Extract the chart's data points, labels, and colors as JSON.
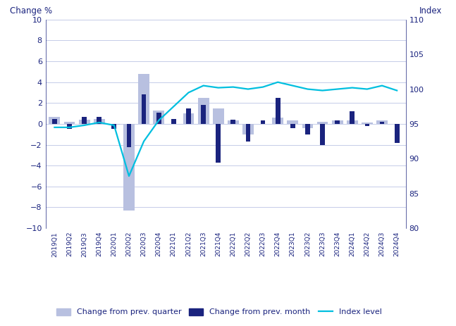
{
  "labels": [
    "2019Q1",
    "2019Q2",
    "2019Q3",
    "2019Q4",
    "2020Q1",
    "2020Q2",
    "2020Q3",
    "2020Q4",
    "2021Q1",
    "2021Q2",
    "2021Q3",
    "2021Q4",
    "2022Q1",
    "2022Q2",
    "2022Q3",
    "2022Q4",
    "2023Q1",
    "2023Q2",
    "2023Q3",
    "2023Q4",
    "2024Q1",
    "2024Q2",
    "2024Q3",
    "2024Q4"
  ],
  "quarter_change": [
    0.7,
    0.2,
    0.4,
    0.5,
    -0.1,
    -8.3,
    4.8,
    1.3,
    0.0,
    1.0,
    2.5,
    1.5,
    0.3,
    -1.0,
    0.0,
    0.6,
    0.3,
    -0.4,
    0.2,
    0.3,
    0.3,
    0.1,
    0.3,
    0.0
  ],
  "month_change": [
    0.5,
    -0.5,
    0.7,
    0.7,
    -0.5,
    -2.2,
    2.8,
    1.1,
    0.5,
    1.5,
    1.8,
    -3.7,
    0.4,
    -1.7,
    0.3,
    2.5,
    -0.4,
    -1.0,
    -2.0,
    0.3,
    1.2,
    -0.2,
    0.2,
    -1.8
  ],
  "index_level": [
    94.5,
    94.5,
    94.8,
    95.2,
    94.8,
    87.5,
    92.5,
    95.5,
    97.5,
    99.5,
    100.5,
    100.2,
    100.3,
    100.0,
    100.3,
    101.0,
    100.5,
    100.0,
    99.8,
    100.0,
    100.2,
    100.0,
    100.5,
    99.8
  ],
  "bar_month_color": "#1a237e",
  "bar_quarter_color": "#b8c0e0",
  "line_color": "#00bfdf",
  "axis_color": "#1a237e",
  "grid_color": "#c5cce8",
  "left_ylabel": "Change %",
  "right_ylabel": "Index",
  "ylim_left": [
    -10,
    10
  ],
  "ylim_right": [
    80,
    110
  ],
  "yticks_left": [
    -10,
    -8,
    -6,
    -4,
    -2,
    0,
    2,
    4,
    6,
    8,
    10
  ],
  "yticks_right": [
    80,
    85,
    90,
    95,
    100,
    105,
    110
  ],
  "legend_labels": [
    "Change from prev. quarter",
    "Change from prev. month",
    "Index level"
  ],
  "fig_width": 6.47,
  "fig_height": 4.63
}
